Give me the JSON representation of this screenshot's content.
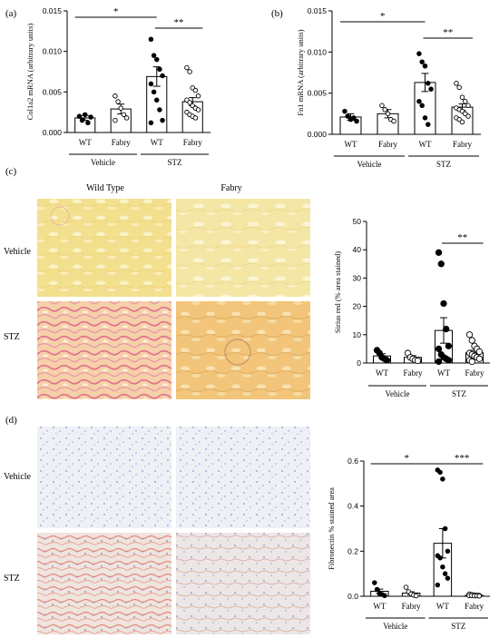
{
  "colors": {
    "axis": "#000000",
    "filled_point": "#000000",
    "open_point": "#ffffff",
    "micro_yellow": "#f2dc8a",
    "micro_sirius_stz": "#e8a6ad",
    "micro_fibro_bg": "#e8ecf1",
    "micro_fibro_stz": "#f0c7bd",
    "micro_nuclei": "#7e84c6"
  },
  "panels": {
    "a": "(a)",
    "b": "(b)",
    "c": "(c)",
    "d": "(d)"
  },
  "groups": {
    "vehicle": "Vehicle",
    "stz": "STZ"
  },
  "micrographs": {
    "col_wild_type": "Wild Type",
    "col_fabry": "Fabry",
    "row_vehicle": "Vehicle",
    "row_stz": "STZ"
  },
  "chart_data": [
    {
      "id": "a",
      "type": "bar",
      "ylabel": "Col1a2 mRNA (arbitrary units)",
      "ylim": [
        0,
        0.015
      ],
      "yticks": [
        "0.000",
        "0.005",
        "0.010",
        "0.015"
      ],
      "ytick_values": [
        0,
        0.005,
        0.01,
        0.015
      ],
      "categories": [
        "WT",
        "Fabry",
        "WT",
        "Fabry"
      ],
      "groups": [
        "Vehicle",
        "STZ"
      ],
      "values": [
        0.0018,
        0.0029,
        0.0069,
        0.0038
      ],
      "errors": [
        0.0003,
        0.0006,
        0.0012,
        0.0005
      ],
      "points": [
        [
          0.002,
          0.0015,
          0.0022,
          0.0012,
          0.0019
        ],
        [
          0.0045,
          0.0038,
          0.003,
          0.0022,
          0.0018,
          0.0015
        ],
        [
          0.0115,
          0.0095,
          0.009,
          0.0078,
          0.007,
          0.006,
          0.005,
          0.004,
          0.0028,
          0.0015,
          0.0012
        ],
        [
          0.008,
          0.0075,
          0.0055,
          0.0052,
          0.0045,
          0.004,
          0.0037,
          0.0033,
          0.003,
          0.0028,
          0.0025,
          0.0022,
          0.002,
          0.0018
        ]
      ],
      "point_style": [
        "filled",
        "open",
        "filled",
        "open"
      ],
      "significance": [
        {
          "from": 0,
          "to": 2,
          "label": "*"
        },
        {
          "from": 2,
          "to": 3,
          "label": "**"
        }
      ]
    },
    {
      "id": "b",
      "type": "bar",
      "ylabel": "Fn1 mRNA (arbitrary units)",
      "ylim": [
        0,
        0.015
      ],
      "yticks": [
        "0.000",
        "0.005",
        "0.010",
        "0.015"
      ],
      "ytick_values": [
        0,
        0.005,
        0.01,
        0.015
      ],
      "categories": [
        "WT",
        "Fabry",
        "WT",
        "Fabry"
      ],
      "groups": [
        "Vehicle",
        "STZ"
      ],
      "values": [
        0.0021,
        0.0025,
        0.0063,
        0.0033
      ],
      "errors": [
        0.0004,
        0.0005,
        0.0011,
        0.0004
      ],
      "points": [
        [
          0.0028,
          0.0022,
          0.0018,
          0.002,
          0.0016
        ],
        [
          0.0035,
          0.003,
          0.0025,
          0.0018,
          0.0016
        ],
        [
          0.0098,
          0.0088,
          0.0083,
          0.0062,
          0.0055,
          0.004,
          0.0035,
          0.002,
          0.0012
        ],
        [
          0.0062,
          0.0057,
          0.0045,
          0.004,
          0.0035,
          0.0032,
          0.003,
          0.0028,
          0.0025,
          0.0022,
          0.002,
          0.0018,
          0.0015
        ]
      ],
      "point_style": [
        "filled",
        "open",
        "filled",
        "open"
      ],
      "significance": [
        {
          "from": 0,
          "to": 2,
          "label": "*"
        },
        {
          "from": 2,
          "to": 3,
          "label": "**"
        }
      ]
    },
    {
      "id": "c",
      "type": "bar",
      "ylabel": "Sirius red (% area stained)",
      "ylim": [
        0,
        50
      ],
      "yticks": [
        "0",
        "10",
        "20",
        "30",
        "40",
        "50"
      ],
      "ytick_values": [
        0,
        10,
        20,
        30,
        40,
        50
      ],
      "categories": [
        "WT",
        "Fabry",
        "WT",
        "Fabry"
      ],
      "groups": [
        "Vehicle",
        "STZ"
      ],
      "values": [
        2.5,
        2.0,
        11.5,
        3.6
      ],
      "errors": [
        0.8,
        0.6,
        4.5,
        0.9
      ],
      "points": [
        [
          4.5,
          3.5,
          2.0,
          1.5,
          1.0
        ],
        [
          3.5,
          2.0,
          1.5,
          1.0,
          0.8
        ],
        [
          39,
          35,
          21,
          12,
          6,
          5,
          3,
          2,
          1.5,
          1,
          0.5
        ],
        [
          10,
          8,
          6,
          5,
          4,
          3.5,
          3,
          2.5,
          2,
          1.5,
          1,
          0.5
        ]
      ],
      "point_style": [
        "filled",
        "open",
        "filled",
        "open"
      ],
      "significance": [
        {
          "from": 2,
          "to": 3,
          "label": "**"
        }
      ]
    },
    {
      "id": "d",
      "type": "bar",
      "ylabel": "Fibronectin % stained area",
      "ylim": [
        0,
        0.6
      ],
      "yticks": [
        "0.0",
        "0.2",
        "0.4",
        "0.6"
      ],
      "ytick_values": [
        0,
        0.2,
        0.4,
        0.6
      ],
      "categories": [
        "WT",
        "Fabry",
        "WT",
        "Fabry"
      ],
      "groups": [
        "Vehicle",
        "STZ"
      ],
      "values": [
        0.022,
        0.014,
        0.235,
        0.004
      ],
      "errors": [
        0.01,
        0.006,
        0.065,
        0.002
      ],
      "points": [
        [
          0.06,
          0.03,
          0.012,
          0.008,
          0.003
        ],
        [
          0.04,
          0.02,
          0.01,
          0.005,
          0.002
        ],
        [
          0.56,
          0.55,
          0.52,
          0.3,
          0.2,
          0.18,
          0.17,
          0.13,
          0.1,
          0.08,
          0.05
        ],
        [
          0.01,
          0.008,
          0.006,
          0.005,
          0.004,
          0.003,
          0.003,
          0.002,
          0.002,
          0.001
        ]
      ],
      "point_style": [
        "filled",
        "open",
        "filled",
        "open"
      ],
      "significance": [
        {
          "from": 0,
          "to": 2,
          "label": "*"
        },
        {
          "from": 2,
          "to": 3,
          "label": "***"
        }
      ]
    }
  ]
}
